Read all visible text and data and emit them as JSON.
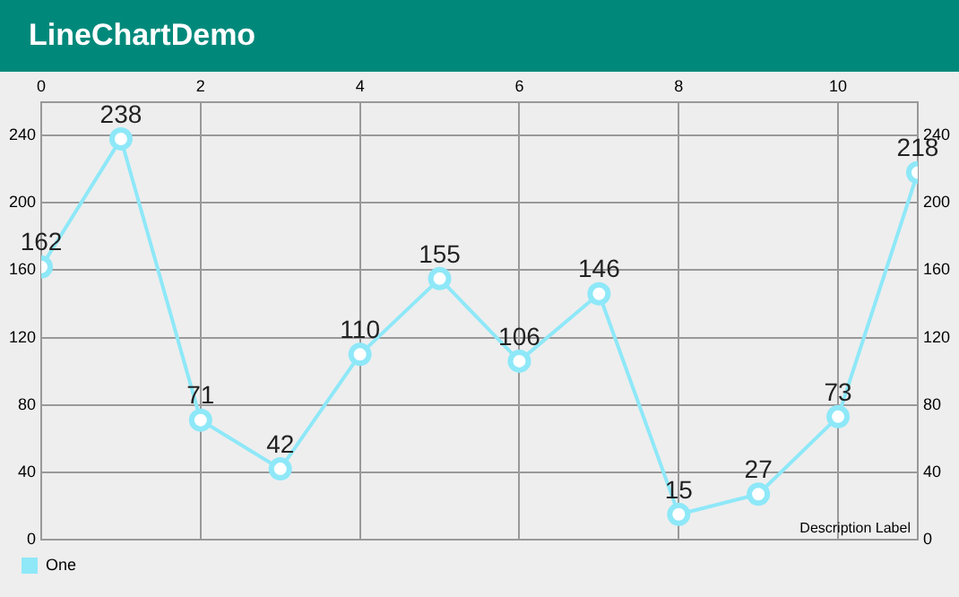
{
  "chart_data": {
    "type": "line",
    "title": "LineChartDemo",
    "x": [
      0,
      1,
      2,
      3,
      4,
      5,
      6,
      7,
      8,
      9,
      10,
      11
    ],
    "series": [
      {
        "name": "One",
        "color": "#8ee8f8",
        "values": [
          162,
          238,
          71,
          42,
          110,
          155,
          106,
          146,
          15,
          27,
          73,
          218
        ]
      }
    ],
    "xlim": [
      0,
      11
    ],
    "xticks": [
      0,
      2,
      4,
      6,
      8,
      10
    ],
    "ylim": [
      0,
      260
    ],
    "yticks": [
      0,
      40,
      80,
      120,
      160,
      200,
      240
    ],
    "y2lim": [
      0,
      260
    ],
    "y2ticks": [
      0,
      40,
      80,
      120,
      160,
      200,
      240
    ],
    "grid": true,
    "legend": "bottom left",
    "marker": "circle",
    "line_style": "solid",
    "data_labels": true,
    "annotations": [
      "Description Label"
    ]
  }
}
